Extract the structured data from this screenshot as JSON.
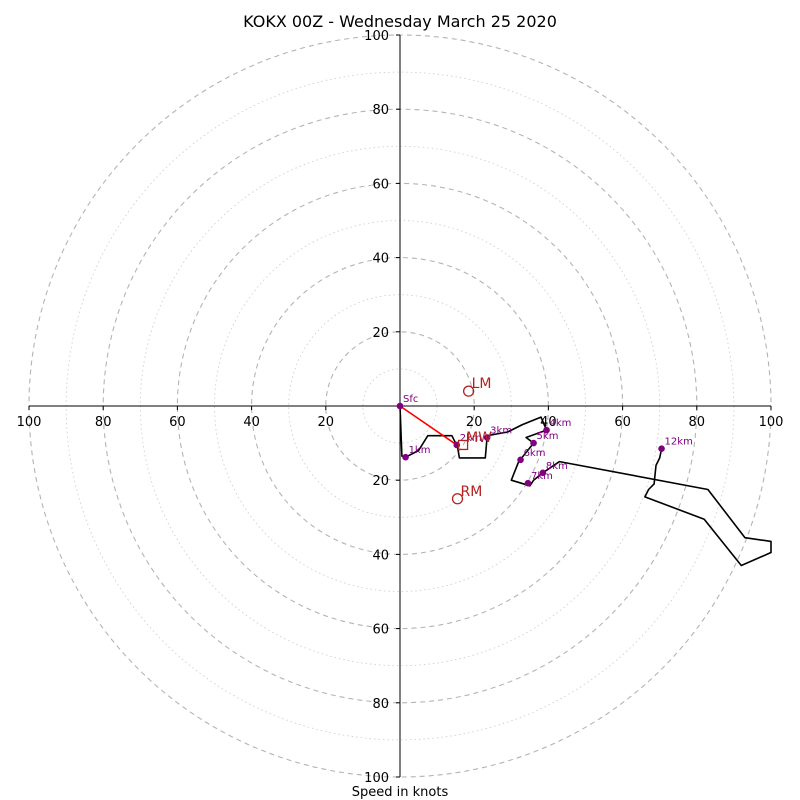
{
  "chart_data": {
    "type": "hodograph",
    "title": "KOKX 00Z - Wednesday March 25 2020",
    "xlabel": "Speed in knots",
    "range": [
      -100,
      100
    ],
    "ring_step": 10,
    "ring_label_step": 20,
    "tick_labels_x": [
      "100",
      "80",
      "60",
      "40",
      "20",
      "20",
      "40",
      "60",
      "80",
      "100"
    ],
    "tick_values_x": [
      -100,
      -80,
      -60,
      -40,
      -20,
      20,
      40,
      60,
      80,
      100
    ],
    "tick_labels_y": [
      "100",
      "80",
      "60",
      "40",
      "20",
      "20",
      "40",
      "60",
      "80",
      "100"
    ],
    "tick_values_y": [
      100,
      80,
      60,
      40,
      20,
      -20,
      -40,
      -60,
      -80,
      -100
    ],
    "profile": [
      [
        0,
        0
      ],
      [
        0.5,
        -13.5
      ],
      [
        1.5,
        -13.8
      ],
      [
        5,
        -12
      ],
      [
        7.5,
        -8
      ],
      [
        14,
        -8
      ],
      [
        15.5,
        -11
      ],
      [
        16,
        -14
      ],
      [
        23,
        -14
      ],
      [
        23.5,
        -8
      ],
      [
        29,
        -7
      ],
      [
        33,
        -5
      ],
      [
        38,
        -3
      ],
      [
        39.5,
        -6.5
      ],
      [
        34,
        -8.5
      ],
      [
        36,
        -10
      ],
      [
        32,
        -15
      ],
      [
        30,
        -20
      ],
      [
        35,
        -21.5
      ],
      [
        36,
        -20
      ],
      [
        38.5,
        -18
      ],
      [
        43,
        -15
      ],
      [
        83,
        -22.5
      ],
      [
        93,
        -35.5
      ],
      [
        100,
        -36.5
      ],
      [
        100,
        -39.5
      ],
      [
        92,
        -43
      ],
      [
        82,
        -30.5
      ],
      [
        66,
        -24.5
      ],
      [
        67,
        -22.5
      ],
      [
        68.5,
        -21
      ],
      [
        69,
        -16
      ],
      [
        70,
        -14
      ],
      [
        70.5,
        -11.5
      ]
    ],
    "height_markers": [
      {
        "label": "Sfc",
        "u": 0,
        "v": 0
      },
      {
        "label": "1km",
        "u": 1.5,
        "v": -13.8
      },
      {
        "label": "2km",
        "u": 15.3,
        "v": -10.5
      },
      {
        "label": "3km",
        "u": 23.5,
        "v": -8.5
      },
      {
        "label": "4km",
        "u": 39.5,
        "v": -6.5
      },
      {
        "label": "5km",
        "u": 36,
        "v": -10
      },
      {
        "label": "6km",
        "u": 32.5,
        "v": -14.5
      },
      {
        "label": "7km",
        "u": 34.5,
        "v": -20.8
      },
      {
        "label": "8km",
        "u": 38.5,
        "v": -18
      },
      {
        "label": "12km",
        "u": 70.5,
        "v": -11.5
      }
    ],
    "mean_wind_segment": [
      [
        0,
        0
      ],
      [
        15.3,
        -10.5
      ]
    ],
    "storm_motions": [
      {
        "label": "LM",
        "u": 18.5,
        "v": 4
      },
      {
        "label": "MW",
        "u": 17,
        "v": -10.5
      },
      {
        "label": "RM",
        "u": 15.5,
        "v": -25
      }
    ],
    "colors": {
      "rings": "#b4b4b4",
      "profile": "#000000",
      "markers": "#800080",
      "mean_wind": "#ff0000",
      "storm_motion": "#b22222"
    }
  }
}
